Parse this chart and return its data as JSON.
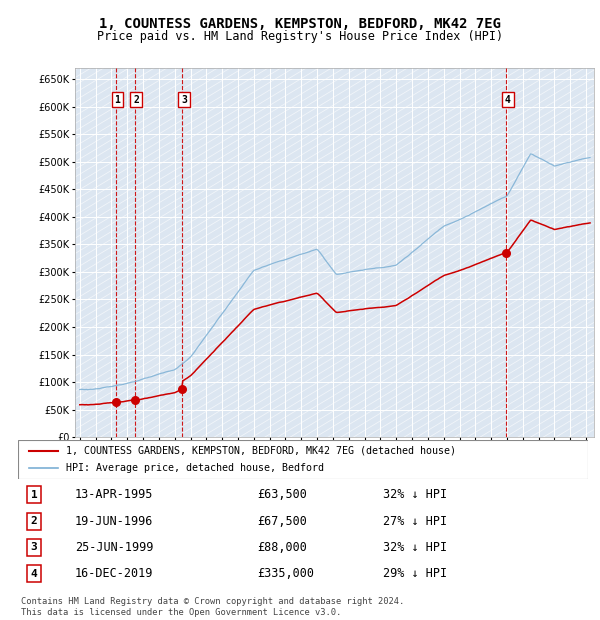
{
  "title": "1, COUNTESS GARDENS, KEMPSTON, BEDFORD, MK42 7EG",
  "subtitle": "Price paid vs. HM Land Registry's House Price Index (HPI)",
  "ylim": [
    0,
    670000
  ],
  "yticks": [
    0,
    50000,
    100000,
    150000,
    200000,
    250000,
    300000,
    350000,
    400000,
    450000,
    500000,
    550000,
    600000,
    650000
  ],
  "xlim_start": 1992.7,
  "xlim_end": 2025.5,
  "background_color": "#ffffff",
  "plot_bg_color": "#dce6f1",
  "grid_color": "#ffffff",
  "sale_dates": [
    1995.283,
    1996.464,
    1999.483,
    2019.958
  ],
  "sale_prices": [
    63500,
    67500,
    88000,
    335000
  ],
  "sale_labels": [
    "1",
    "2",
    "3",
    "4"
  ],
  "sale_line_color": "#cc0000",
  "hpi_line_color": "#7bafd4",
  "legend_sale_label": "1, COUNTESS GARDENS, KEMPSTON, BEDFORD, MK42 7EG (detached house)",
  "legend_hpi_label": "HPI: Average price, detached house, Bedford",
  "table_rows": [
    {
      "num": "1",
      "date": "13-APR-1995",
      "price": "£63,500",
      "vs_hpi": "32% ↓ HPI"
    },
    {
      "num": "2",
      "date": "19-JUN-1996",
      "price": "£67,500",
      "vs_hpi": "27% ↓ HPI"
    },
    {
      "num": "3",
      "date": "25-JUN-1999",
      "price": "£88,000",
      "vs_hpi": "32% ↓ HPI"
    },
    {
      "num": "4",
      "date": "16-DEC-2019",
      "price": "£335,000",
      "vs_hpi": "29% ↓ HPI"
    }
  ],
  "footnote": "Contains HM Land Registry data © Crown copyright and database right 2024.\nThis data is licensed under the Open Government Licence v3.0."
}
